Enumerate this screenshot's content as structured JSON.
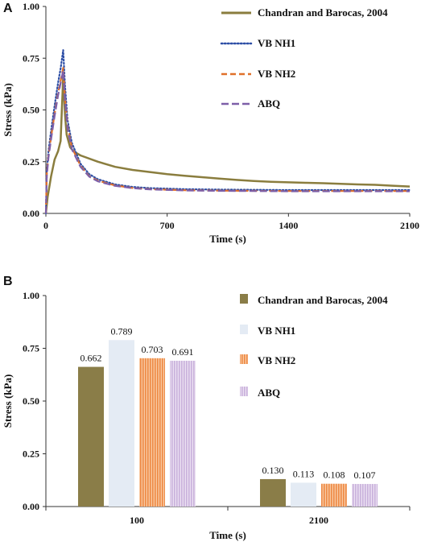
{
  "chart_data": [
    {
      "panel": "A",
      "type": "line",
      "xlabel": "Time (s)",
      "ylabel": "Stress (kPa)",
      "xlim": [
        0,
        2100
      ],
      "ylim": [
        0,
        1.0
      ],
      "xticks": [
        "0",
        "700",
        "1400",
        "2100"
      ],
      "yticks": [
        "0.00",
        "0.25",
        "0.50",
        "0.75",
        "1.00"
      ],
      "grid": false,
      "legend_position": "top-right",
      "series": [
        {
          "name": "Chandran and Barocas, 2004",
          "color": "#8a7d3e",
          "style": "solid",
          "x": [
            0,
            10,
            30,
            50,
            70,
            85,
            100,
            110,
            120,
            140,
            160,
            200,
            300,
            400,
            500,
            600,
            700,
            800,
            900,
            1000,
            1100,
            1200,
            1300,
            1400,
            1500,
            1600,
            1700,
            1800,
            1900,
            2000,
            2100
          ],
          "y": [
            0.0,
            0.08,
            0.18,
            0.26,
            0.3,
            0.35,
            0.66,
            0.48,
            0.38,
            0.32,
            0.3,
            0.28,
            0.25,
            0.225,
            0.21,
            0.2,
            0.19,
            0.182,
            0.175,
            0.168,
            0.162,
            0.157,
            0.153,
            0.15,
            0.148,
            0.146,
            0.143,
            0.14,
            0.138,
            0.134,
            0.13
          ]
        },
        {
          "name": "VB NH1",
          "color": "#2e4fa6",
          "style": "dotted",
          "x": [
            0,
            5,
            15,
            30,
            50,
            70,
            85,
            100,
            110,
            125,
            150,
            200,
            250,
            300,
            400,
            500,
            600,
            800,
            1000,
            1200,
            1400,
            1600,
            1800,
            2000,
            2100
          ],
          "y": [
            0.0,
            0.2,
            0.3,
            0.4,
            0.52,
            0.63,
            0.7,
            0.789,
            0.62,
            0.45,
            0.34,
            0.24,
            0.19,
            0.165,
            0.14,
            0.128,
            0.122,
            0.117,
            0.115,
            0.114,
            0.113,
            0.113,
            0.113,
            0.113,
            0.113
          ]
        },
        {
          "name": "VB NH2",
          "color": "#e0702a",
          "style": "dashed",
          "x": [
            0,
            5,
            15,
            30,
            50,
            70,
            85,
            100,
            110,
            125,
            150,
            200,
            250,
            300,
            400,
            500,
            600,
            800,
            1000,
            1200,
            1400,
            1600,
            1800,
            2000,
            2100
          ],
          "y": [
            0.0,
            0.19,
            0.28,
            0.37,
            0.48,
            0.58,
            0.64,
            0.703,
            0.56,
            0.42,
            0.32,
            0.23,
            0.18,
            0.158,
            0.135,
            0.123,
            0.117,
            0.112,
            0.11,
            0.109,
            0.108,
            0.108,
            0.108,
            0.108,
            0.108
          ]
        },
        {
          "name": "ABQ",
          "color": "#7d5fa8",
          "style": "long-dashed",
          "x": [
            0,
            5,
            15,
            30,
            50,
            70,
            85,
            100,
            110,
            125,
            150,
            200,
            250,
            300,
            400,
            500,
            600,
            800,
            1000,
            1200,
            1400,
            1600,
            1800,
            2000,
            2100
          ],
          "y": [
            0.0,
            0.18,
            0.27,
            0.36,
            0.47,
            0.57,
            0.63,
            0.691,
            0.55,
            0.41,
            0.31,
            0.225,
            0.178,
            0.155,
            0.133,
            0.122,
            0.116,
            0.111,
            0.109,
            0.108,
            0.107,
            0.107,
            0.107,
            0.107,
            0.107
          ]
        }
      ]
    },
    {
      "panel": "B",
      "type": "bar",
      "xlabel": "Time (s)",
      "ylabel": "Stress (kPa)",
      "categories": [
        "100",
        "2100"
      ],
      "ylim": [
        0,
        1.0
      ],
      "yticks": [
        "0.00",
        "0.25",
        "0.50",
        "0.75",
        "1.00"
      ],
      "grid": false,
      "legend_position": "top-right",
      "series": [
        {
          "name": "Chandran and Barocas, 2004",
          "color": "#8a7d48",
          "pattern": "solid",
          "values": [
            0.662,
            0.13
          ],
          "labels": [
            "0.662",
            "0.130"
          ]
        },
        {
          "name": "VB NH1",
          "color": "#e4ebf4",
          "pattern": "solid",
          "values": [
            0.789,
            0.113
          ],
          "labels": [
            "0.789",
            "0.113"
          ]
        },
        {
          "name": "VB NH2",
          "color": "#f4a46a",
          "pattern": "vertical-stripes",
          "values": [
            0.703,
            0.108
          ],
          "labels": [
            "0.703",
            "0.108"
          ]
        },
        {
          "name": "ABQ",
          "color": "#d6c2e4",
          "pattern": "vertical-stripes",
          "values": [
            0.691,
            0.107
          ],
          "labels": [
            "0.691",
            "0.107"
          ]
        }
      ]
    }
  ]
}
